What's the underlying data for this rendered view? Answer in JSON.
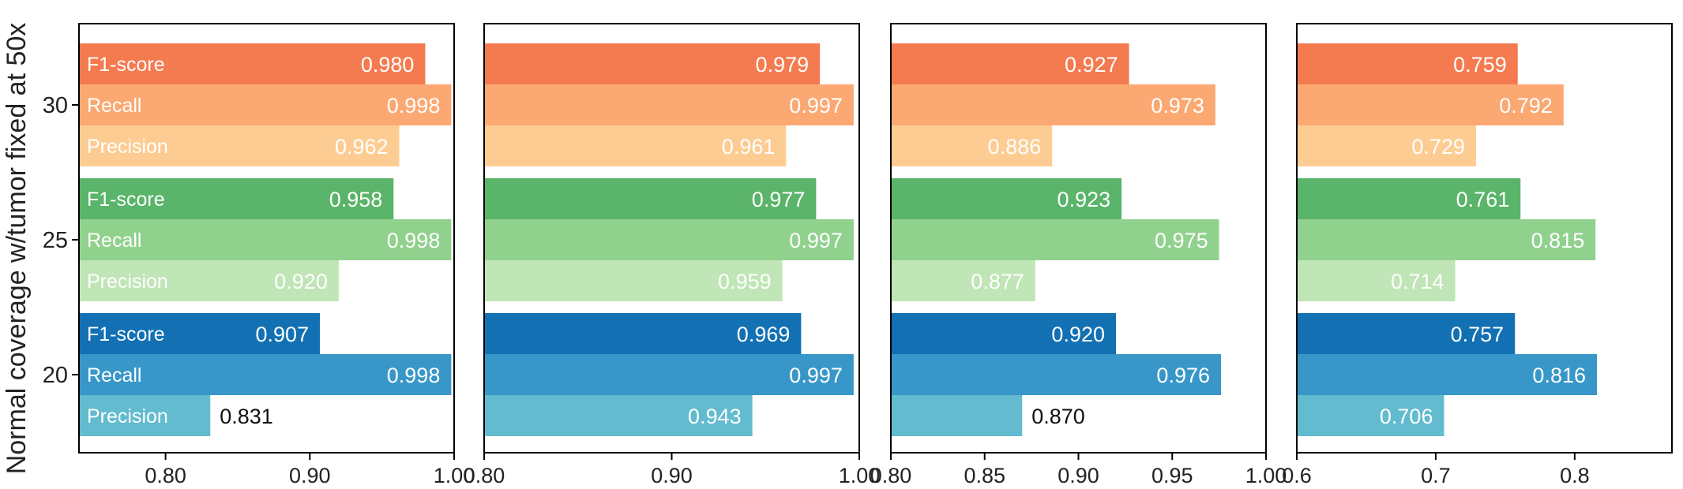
{
  "chart_data": {
    "type": "bar",
    "orientation": "horizontal",
    "ylabel": "Normal coverage w/tumor fixed at 50x",
    "groups": [
      "30",
      "25",
      "20"
    ],
    "metrics": [
      "F1-score",
      "Recall",
      "Precision"
    ],
    "colors": {
      "30": [
        "#F47A50",
        "#FBA872",
        "#FDCC93"
      ],
      "25": [
        "#5AB469",
        "#91D18E",
        "#C0E5B6"
      ],
      "20": [
        "#1270B3",
        "#3897C8",
        "#62BBCE"
      ]
    },
    "panels": [
      {
        "xlim": [
          0.74,
          1.0
        ],
        "xticks": [
          0.8,
          0.9,
          1.0
        ],
        "xtick_labels": [
          "0.80",
          "0.90",
          "1.00"
        ],
        "values": {
          "30": [
            0.98,
            0.998,
            0.962
          ],
          "25": [
            0.958,
            0.998,
            0.92
          ],
          "20": [
            0.907,
            0.998,
            0.831
          ]
        },
        "value_labels": {
          "30": [
            "0.980",
            "0.998",
            "0.962"
          ],
          "25": [
            "0.958",
            "0.998",
            "0.920"
          ],
          "20": [
            "0.907",
            "0.998",
            "0.831"
          ]
        }
      },
      {
        "xlim": [
          0.8,
          1.0
        ],
        "xticks": [
          0.8,
          0.9,
          1.0
        ],
        "xtick_labels": [
          "0.80",
          "0.90",
          "1.00"
        ],
        "values": {
          "30": [
            0.979,
            0.997,
            0.961
          ],
          "25": [
            0.977,
            0.997,
            0.959
          ],
          "20": [
            0.969,
            0.997,
            0.943
          ]
        },
        "value_labels": {
          "30": [
            "0.979",
            "0.997",
            "0.961"
          ],
          "25": [
            "0.977",
            "0.997",
            "0.959"
          ],
          "20": [
            "0.969",
            "0.997",
            "0.943"
          ]
        }
      },
      {
        "xlim": [
          0.8,
          1.0
        ],
        "xticks": [
          0.8,
          0.85,
          0.9,
          0.95,
          1.0
        ],
        "xtick_labels": [
          "0.80",
          "0.85",
          "0.90",
          "0.95",
          "1.00"
        ],
        "values": {
          "30": [
            0.927,
            0.973,
            0.886
          ],
          "25": [
            0.923,
            0.975,
            0.877
          ],
          "20": [
            0.92,
            0.976,
            0.87
          ]
        },
        "value_labels": {
          "30": [
            "0.927",
            "0.973",
            "0.886"
          ],
          "25": [
            "0.923",
            "0.975",
            "0.877"
          ],
          "20": [
            "0.920",
            "0.976",
            "0.870"
          ]
        }
      },
      {
        "xlim": [
          0.6,
          0.87
        ],
        "xticks": [
          0.6,
          0.7,
          0.8
        ],
        "xtick_labels": [
          "0.6",
          "0.7",
          "0.8"
        ],
        "values": {
          "30": [
            0.759,
            0.792,
            0.729
          ],
          "25": [
            0.761,
            0.815,
            0.714
          ],
          "20": [
            0.757,
            0.816,
            0.706
          ]
        },
        "value_labels": {
          "30": [
            "0.759",
            "0.792",
            "0.729"
          ],
          "25": [
            "0.761",
            "0.815",
            "0.714"
          ],
          "20": [
            "0.757",
            "0.816",
            "0.706"
          ]
        }
      }
    ]
  }
}
